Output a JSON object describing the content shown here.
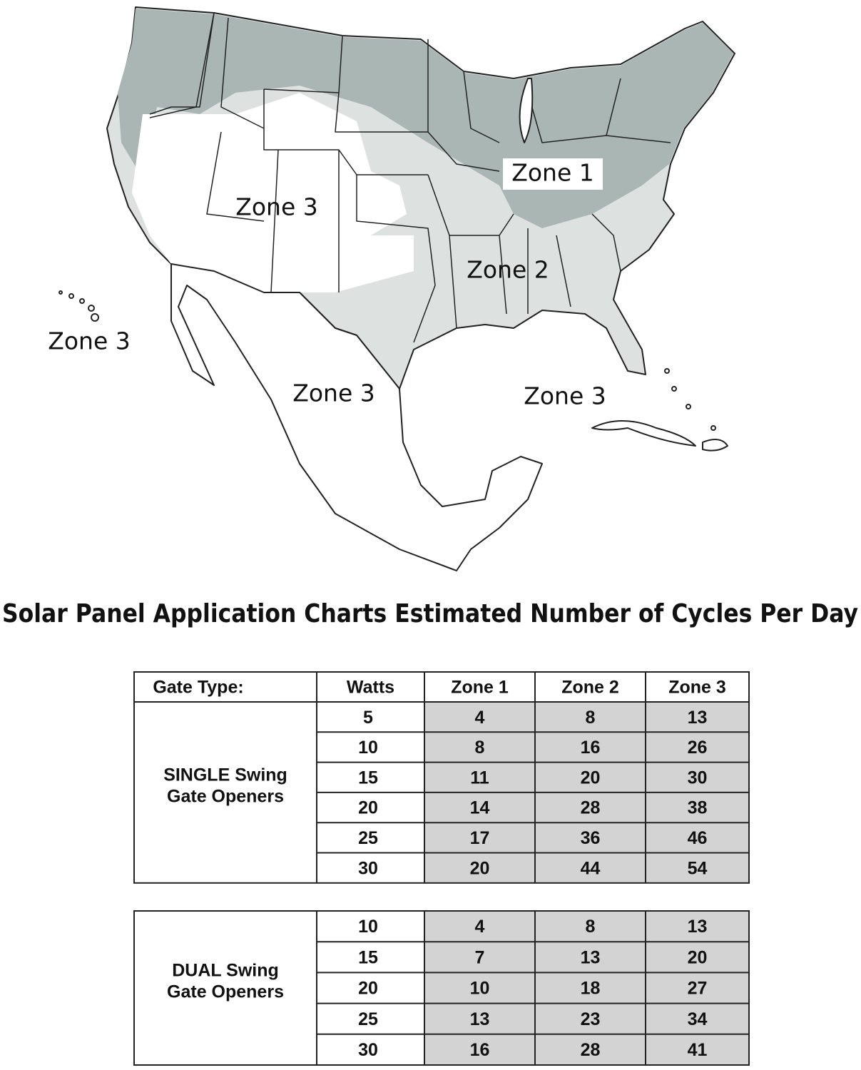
{
  "map": {
    "labels": [
      "Zone 1",
      "Zone 3",
      "Zone 2",
      "Zone 3",
      "Zone 3",
      "Zone 3"
    ]
  },
  "title": "Solar Panel Application Charts Estimated Number of Cycles Per Day",
  "table": {
    "header": [
      "Gate Type:",
      "Watts",
      "Zone 1",
      "Zone 2",
      "Zone 3"
    ],
    "groups": [
      {
        "label_lines": [
          "SINGLE Swing",
          "Gate Openers"
        ],
        "rows": [
          [
            5,
            4,
            8,
            13
          ],
          [
            10,
            8,
            16,
            26
          ],
          [
            15,
            11,
            20,
            30
          ],
          [
            20,
            14,
            28,
            38
          ],
          [
            25,
            17,
            36,
            46
          ],
          [
            30,
            20,
            44,
            54
          ]
        ]
      },
      {
        "label_lines": [
          "DUAL Swing",
          "Gate Openers"
        ],
        "rows": [
          [
            10,
            4,
            8,
            13
          ],
          [
            15,
            7,
            13,
            20
          ],
          [
            20,
            10,
            18,
            27
          ],
          [
            25,
            13,
            23,
            34
          ],
          [
            30,
            16,
            28,
            41
          ]
        ]
      }
    ]
  }
}
